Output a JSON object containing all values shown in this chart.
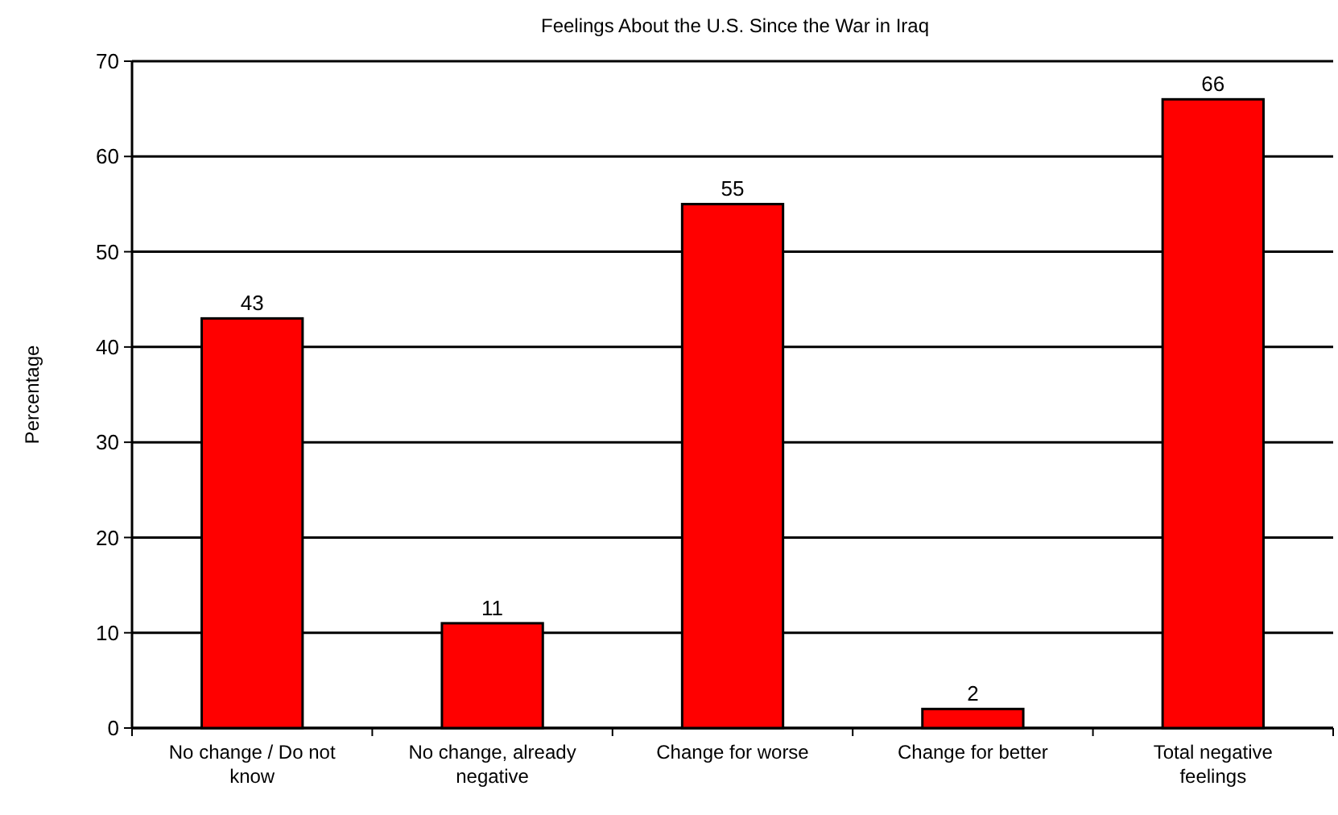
{
  "chart_data": {
    "type": "bar",
    "title": "Feelings About the U.S. Since the War in Iraq",
    "ylabel": "Percentage",
    "categories": [
      "No change / Do not know",
      "No change, already negative",
      "Change for worse",
      "Change for better",
      "Total negative feelings"
    ],
    "values": [
      43,
      11,
      55,
      2,
      66
    ],
    "color": "#ff0000",
    "ylim": [
      0,
      70
    ],
    "yticks": [
      0,
      10,
      20,
      30,
      40,
      50,
      60,
      70
    ],
    "grid": "y",
    "data_labels": true
  }
}
